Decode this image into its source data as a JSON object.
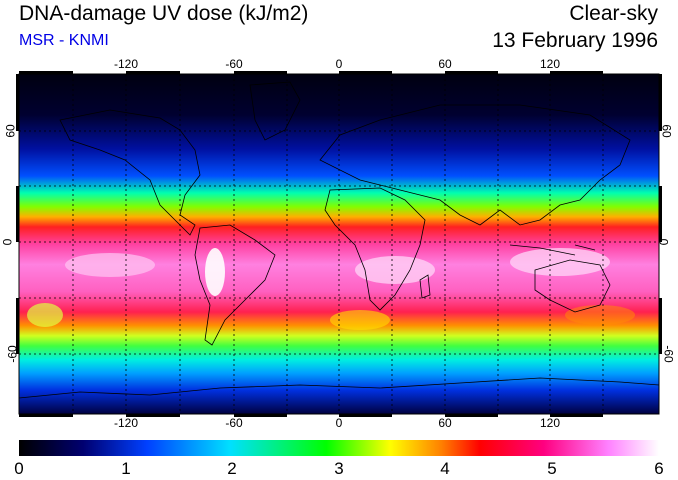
{
  "header": {
    "title": "DNA-damage UV dose (kJ/m2)",
    "source": "MSR - KNMI",
    "sky_condition": "Clear-sky",
    "date": "13 February 1996"
  },
  "map": {
    "lon_ticks": [
      "-120",
      "-60",
      "0",
      "60",
      "120"
    ],
    "lat_ticks": [
      "60",
      "0",
      "-60"
    ],
    "grid_lines": "dotted",
    "projection": "equirectangular"
  },
  "colorbar": {
    "labels": [
      "0",
      "1",
      "2",
      "3",
      "4",
      "5",
      "6"
    ],
    "range": [
      0,
      6
    ],
    "colors": [
      "#000000",
      "#000080",
      "#0040ff",
      "#00e0ff",
      "#00ff00",
      "#ffff00",
      "#ff8000",
      "#ff0000",
      "#ff0080",
      "#ff80ff",
      "#ffffff"
    ]
  },
  "colors": {
    "title": "#000000",
    "source": "#0000e6"
  }
}
